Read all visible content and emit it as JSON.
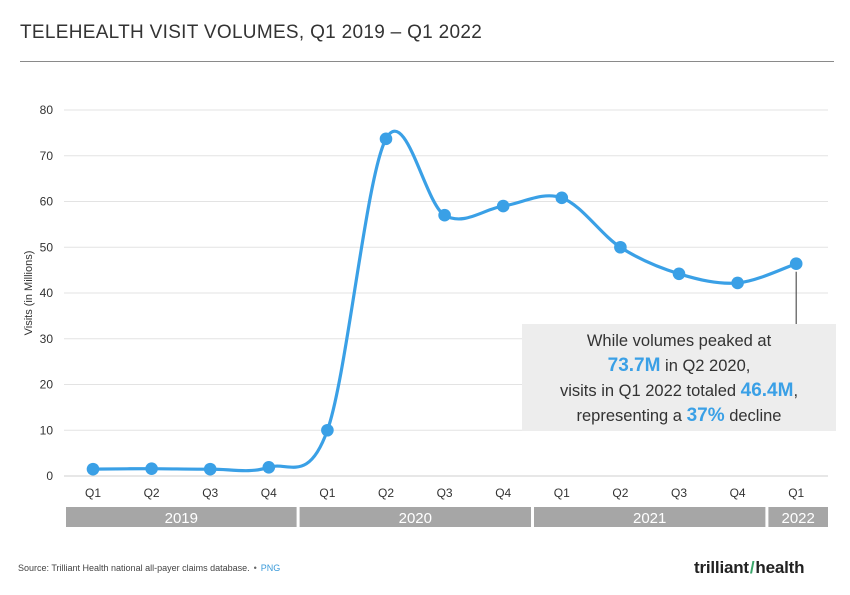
{
  "header": {
    "title": "TELEHEALTH VISIT VOLUMES, Q1 2019 – Q1 2022"
  },
  "chart_data": {
    "type": "line",
    "title": "TELEHEALTH VISIT VOLUMES, Q1 2019 – Q1 2022",
    "ylabel": "Visits (in Millions)",
    "xlabel": "",
    "ylim": [
      0,
      80
    ],
    "yticks": [
      0,
      10,
      20,
      30,
      40,
      50,
      60,
      70,
      80
    ],
    "grid": true,
    "categories": [
      "Q1",
      "Q2",
      "Q3",
      "Q4",
      "Q1",
      "Q2",
      "Q3",
      "Q4",
      "Q1",
      "Q2",
      "Q3",
      "Q4",
      "Q1"
    ],
    "years": [
      {
        "label": "2019",
        "quarters": 4
      },
      {
        "label": "2020",
        "quarters": 4
      },
      {
        "label": "2021",
        "quarters": 4
      },
      {
        "label": "2022",
        "quarters": 1
      }
    ],
    "series": [
      {
        "values": [
          1.5,
          1.6,
          1.5,
          1.9,
          10.0,
          73.7,
          57.0,
          59.0,
          60.8,
          50.0,
          44.2,
          42.2,
          46.4
        ],
        "color": "#3aa0e6"
      }
    ],
    "annotation": {
      "target_index": 12,
      "line1": "While volumes peaked at",
      "line2_value": "73.7M",
      "line2_rest": " in Q2 2020,",
      "line3_prefix": "visits in Q1 2022 totaled ",
      "line3_value": "46.4M",
      "line3_suffix": ",",
      "line4_prefix": "representing a ",
      "line4_value": "37%",
      "line4_suffix": " decline"
    }
  },
  "colors": {
    "accent": "#3aa0e6",
    "year_band": "#a6a6a6",
    "grid": "#e3e3e3",
    "annotation_bg": "#ededed"
  },
  "footer": {
    "source": "Source: Trilliant Health national all-payer claims database.",
    "separator": "•",
    "link": "PNG"
  },
  "brand": {
    "logo_left": "trilliant",
    "logo_right": "health"
  }
}
